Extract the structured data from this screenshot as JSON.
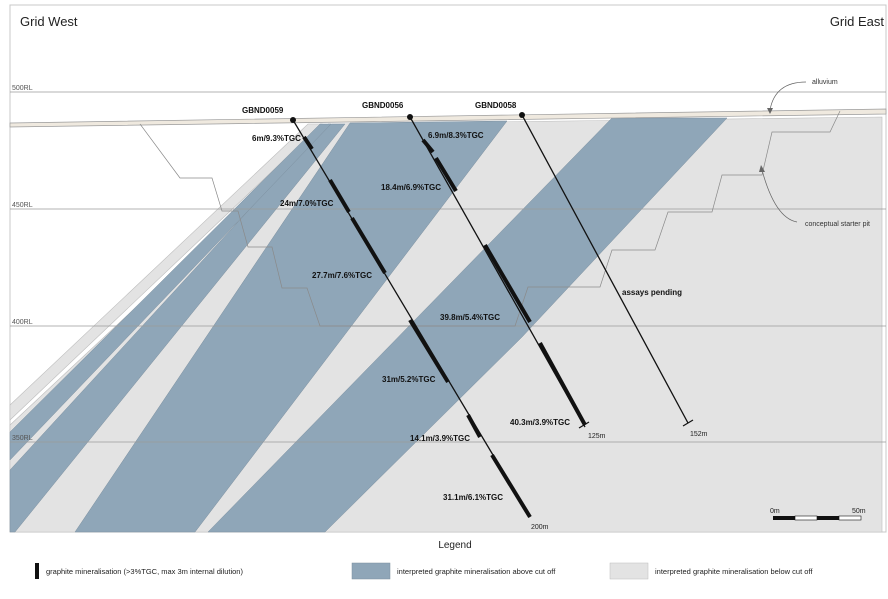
{
  "diagram": {
    "corners": {
      "west": "Grid West",
      "east": "Grid East"
    },
    "rl_levels": [
      "500RL",
      "450RL",
      "400RL",
      "350RL"
    ],
    "annotations": {
      "alluvium": "alluvium",
      "starter_pit": "conceptual starter pit"
    },
    "drillholes": [
      {
        "name": "GBND0059",
        "end_depth": "200m",
        "intervals": [
          "6m/9.3%TGC",
          "24m/7.0%TGC",
          "27.7m/7.6%TGC",
          "31m/5.2%TGC",
          "14.1m/3.9%TGC",
          "31.1m/6.1%TGC"
        ]
      },
      {
        "name": "GBND0056",
        "end_depth": "125m",
        "intervals": [
          "6.9m/8.3%TGC",
          "18.4m/6.9%TGC",
          "39.8m/5.4%TGC",
          "40.3m/3.9%TGC"
        ]
      },
      {
        "name": "GBND0058",
        "end_depth": "152m",
        "status": "assays pending"
      }
    ],
    "scale": {
      "start": "0m",
      "end": "50m"
    },
    "legend": {
      "title": "Legend",
      "items": [
        {
          "label": "graphite mineralisation (>3%TGC, max 3m internal dilution)",
          "color": "#111111"
        },
        {
          "label": "interpreted graphite mineralisation above cut off",
          "color": "#8fa6b8"
        },
        {
          "label": "interpreted graphite mineralisation below cut off",
          "color": "#e3e3e3"
        }
      ]
    }
  }
}
